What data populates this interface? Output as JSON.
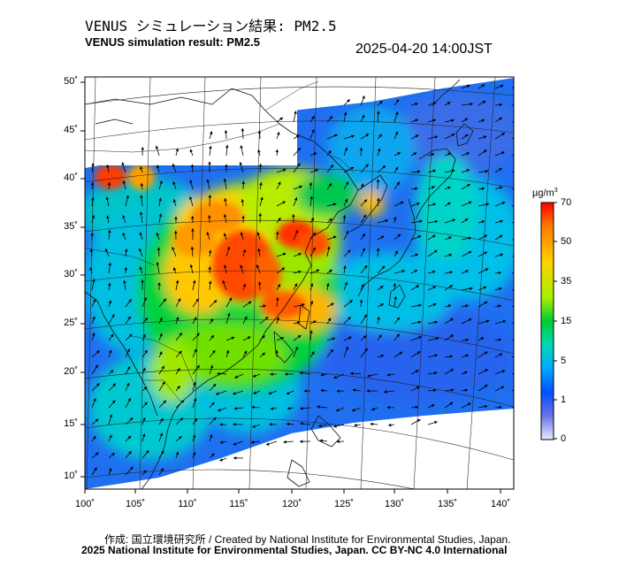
{
  "header": {
    "title_jp": "VENUS シミュレーション結果: PM2.5",
    "title_en": "VENUS simulation result: PM2.5",
    "timestamp": "2025-04-20 14:00JST"
  },
  "map": {
    "lon_range": [
      100,
      141
    ],
    "lat_range": [
      9,
      51
    ],
    "latitude_labels": [
      "50˚",
      "45˚",
      "40˚",
      "35˚",
      "30˚",
      "25˚",
      "20˚",
      "15˚",
      "10˚"
    ],
    "longitude_labels": [
      "100˚",
      "105˚",
      "110˚",
      "115˚",
      "120˚",
      "125˚",
      "130˚",
      "135˚",
      "140˚"
    ]
  },
  "colorbar": {
    "unit": "µg/m",
    "unit_sup": "3",
    "ticks": [
      "70",
      "50",
      "35",
      "15",
      "5",
      "1",
      "0"
    ],
    "colors": [
      "#ff0000",
      "#ff7a00",
      "#ffd200",
      "#a8f000",
      "#00cc33",
      "#00d8b8",
      "#00a8ff",
      "#0050ff",
      "#6b72e6",
      "#d8dcff"
    ]
  },
  "footer": {
    "credit": "作成: 国立環境研究所 / Created by National Institute for Environmental Studies, Japan.",
    "copyright": "2025 National Institute for Environmental Studies, Japan. CC BY-NC 4.0 International"
  }
}
